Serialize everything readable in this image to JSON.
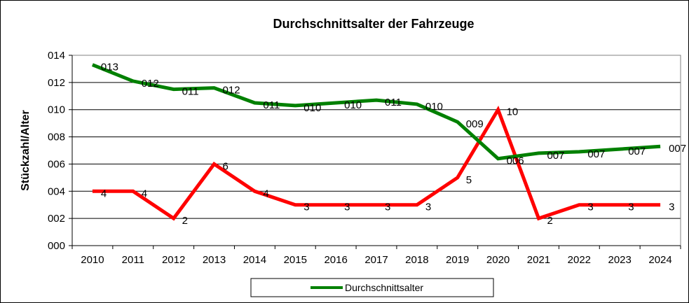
{
  "chart_data": {
    "type": "line",
    "title": "Durchschnittsalter der Fahrzeuge",
    "xlabel": "",
    "ylabel": "Stückzahl/Alter",
    "categories": [
      "2010",
      "2011",
      "2012",
      "2013",
      "2014",
      "2015",
      "2016",
      "2017",
      "2018",
      "2019",
      "2020",
      "2021",
      "2022",
      "2023",
      "2024"
    ],
    "ylim": [
      0,
      14
    ],
    "yticks": [
      "000",
      "002",
      "004",
      "006",
      "008",
      "010",
      "012",
      "014"
    ],
    "grid": true,
    "legend_position": "bottom",
    "series": [
      {
        "name": "Durchschnittsalter",
        "color": "#008000",
        "values": [
          13.3,
          12.1,
          11.5,
          11.6,
          10.5,
          10.3,
          10.5,
          10.7,
          10.4,
          9.1,
          6.4,
          6.8,
          6.9,
          7.1,
          7.3
        ],
        "labels": [
          "013",
          "012",
          "011",
          "012",
          "011",
          "010",
          "010",
          "011",
          "010",
          "009",
          "006",
          "007",
          "007",
          "007",
          "007"
        ]
      },
      {
        "name": "",
        "color": "#ff0000",
        "values": [
          4,
          4,
          2,
          6,
          4,
          3,
          3,
          3,
          3,
          5,
          10,
          2,
          3,
          3,
          3
        ],
        "labels": [
          "4",
          "4",
          "2",
          "6",
          "4",
          "3",
          "3",
          "3",
          "3",
          "5",
          "10",
          "2",
          "3",
          "3",
          "3"
        ]
      }
    ]
  }
}
